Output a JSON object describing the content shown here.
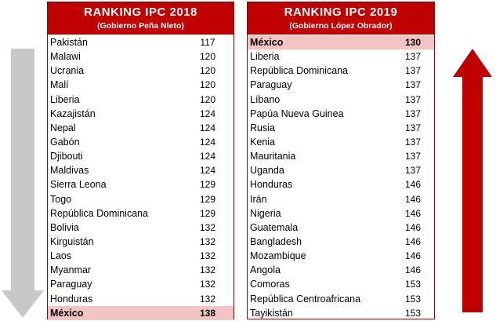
{
  "left_panel": {
    "title": "RANKING IPC 2018",
    "subtitle": "(Gobierno Peña Nleto)",
    "rows": [
      {
        "country": "Pakistán",
        "score": "117"
      },
      {
        "country": "Malawi",
        "score": "120"
      },
      {
        "country": "Ucrania",
        "score": "120"
      },
      {
        "country": "Malí",
        "score": "120"
      },
      {
        "country": "Liberia",
        "score": "120"
      },
      {
        "country": "Kazajistán",
        "score": "124"
      },
      {
        "country": "Nepal",
        "score": "124"
      },
      {
        "country": "Gabón",
        "score": "124"
      },
      {
        "country": "Djibouti",
        "score": "124"
      },
      {
        "country": "Maldivas",
        "score": "124"
      },
      {
        "country": "Sierra Leona",
        "score": "129"
      },
      {
        "country": "Togo",
        "score": "129"
      },
      {
        "country": "República Dominicana",
        "score": "129"
      },
      {
        "country": "Bolivia",
        "score": "132"
      },
      {
        "country": "Kirguistán",
        "score": "132"
      },
      {
        "country": "Laos",
        "score": "132"
      },
      {
        "country": "Myanmar",
        "score": "132"
      },
      {
        "country": "Paraguay",
        "score": "132"
      },
      {
        "country": "Honduras",
        "score": "132"
      },
      {
        "country": "México",
        "score": "138",
        "highlight": true
      }
    ]
  },
  "right_panel": {
    "title": "RANKING IPC 2019",
    "subtitle": "(Gobierno López Obrador)",
    "rows": [
      {
        "country": "México",
        "score": "130",
        "highlight": true
      },
      {
        "country": "Liberia",
        "score": "137"
      },
      {
        "country": "República Dominicana",
        "score": "137"
      },
      {
        "country": "Paraguay",
        "score": "137"
      },
      {
        "country": "Líbano",
        "score": "137"
      },
      {
        "country": "Papúa Nueva Guinea",
        "score": "137"
      },
      {
        "country": "Rusia",
        "score": "137"
      },
      {
        "country": "Kenia",
        "score": "137"
      },
      {
        "country": "Mauritania",
        "score": "137"
      },
      {
        "country": "Uganda",
        "score": "137"
      },
      {
        "country": "Honduras",
        "score": "146"
      },
      {
        "country": "Irán",
        "score": "146"
      },
      {
        "country": "Nigeria",
        "score": "146"
      },
      {
        "country": "Guatemala",
        "score": "146"
      },
      {
        "country": "Bangladesh",
        "score": "146"
      },
      {
        "country": "Mozambique",
        "score": "146"
      },
      {
        "country": "Angola",
        "score": "146"
      },
      {
        "country": "Comoras",
        "score": "153"
      },
      {
        "country": "República Centroafricana",
        "score": "153"
      },
      {
        "country": "Tayikistán",
        "score": "153"
      }
    ]
  },
  "colors": {
    "header_red": "#c00000",
    "highlight_pink": "#f2c4c4",
    "down_arrow_gray": "#c8c8c8",
    "up_arrow_red": "#c00000"
  },
  "icons": {
    "left": "down-arrow-icon",
    "right": "up-arrow-icon"
  }
}
